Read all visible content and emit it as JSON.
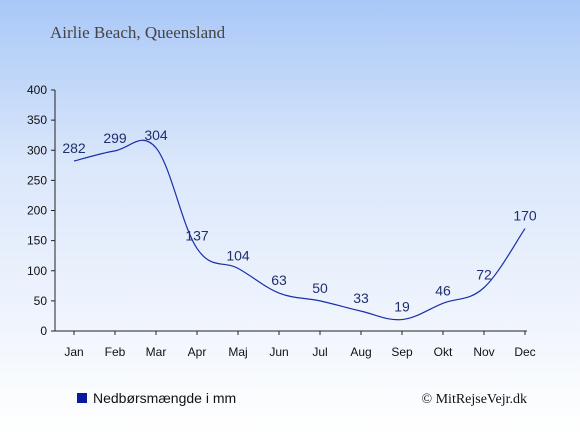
{
  "chart_data": {
    "type": "line",
    "title": "Airlie Beach, Queensland",
    "xlabel": "",
    "ylabel": "",
    "categories": [
      "Jan",
      "Feb",
      "Mar",
      "Apr",
      "Maj",
      "Jun",
      "Jul",
      "Aug",
      "Sep",
      "Okt",
      "Nov",
      "Dec"
    ],
    "series": [
      {
        "name": "Nedbørsmængde i mm",
        "values": [
          282,
          299,
          304,
          137,
          104,
          63,
          50,
          33,
          19,
          46,
          72,
          170
        ]
      }
    ],
    "ylim": [
      0,
      400
    ],
    "yticks": [
      0,
      50,
      100,
      150,
      200,
      250,
      300,
      350,
      400
    ],
    "grid": false,
    "legend_position": "bottom-left",
    "line_color": "#1a2fa8",
    "legend_marker_color": "#0a1aa0"
  },
  "credit": "© MitRejseVejr.dk"
}
